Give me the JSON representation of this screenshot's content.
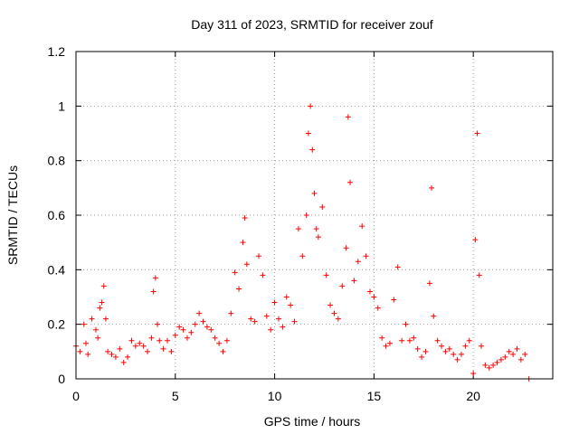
{
  "chart_data": {
    "type": "scatter",
    "title": "Day 311 of 2023, SRMTID for receiver zouf",
    "xlabel": "GPS time / hours",
    "ylabel": "SRMTID / TECUs",
    "xlim": [
      0,
      24
    ],
    "ylim": [
      0,
      1.2
    ],
    "x_ticks": [
      0,
      5,
      10,
      15,
      20
    ],
    "x_tick_labels": [
      "0",
      "5",
      "10",
      "15",
      "20"
    ],
    "y_ticks": [
      0,
      0.2,
      0.4,
      0.6,
      0.8,
      1,
      1.2
    ],
    "y_tick_labels": [
      "0",
      "0.2",
      "0.4",
      "0.6",
      "0.8",
      "1",
      "1.2"
    ],
    "grid": true,
    "marker": "plus",
    "color": "#ff0000",
    "series": [
      {
        "name": "SRMTID",
        "x": [
          0.0,
          0.2,
          0.4,
          0.5,
          0.6,
          0.8,
          1.0,
          1.1,
          1.2,
          1.3,
          1.4,
          1.5,
          1.6,
          1.8,
          2.0,
          2.2,
          2.4,
          2.6,
          2.8,
          3.0,
          3.2,
          3.4,
          3.6,
          3.8,
          3.9,
          4.0,
          4.1,
          4.2,
          4.4,
          4.6,
          4.8,
          5.0,
          5.2,
          5.4,
          5.6,
          5.8,
          6.0,
          6.2,
          6.4,
          6.6,
          6.8,
          7.0,
          7.2,
          7.4,
          7.6,
          7.8,
          8.0,
          8.2,
          8.4,
          8.5,
          8.6,
          8.8,
          9.0,
          9.2,
          9.4,
          9.6,
          9.8,
          10.0,
          10.2,
          10.4,
          10.6,
          10.8,
          11.0,
          11.2,
          11.4,
          11.6,
          11.7,
          11.8,
          11.9,
          12.0,
          12.1,
          12.2,
          12.4,
          12.6,
          12.8,
          13.0,
          13.2,
          13.4,
          13.6,
          13.7,
          13.8,
          14.0,
          14.2,
          14.4,
          14.6,
          14.8,
          15.0,
          15.2,
          15.4,
          15.6,
          15.8,
          16.0,
          16.2,
          16.4,
          16.6,
          16.8,
          17.0,
          17.2,
          17.4,
          17.6,
          17.8,
          17.9,
          18.0,
          18.2,
          18.4,
          18.6,
          18.8,
          19.0,
          19.2,
          19.4,
          19.6,
          19.8,
          20.0,
          20.1,
          20.2,
          20.3,
          20.4,
          20.6,
          20.8,
          21.0,
          21.2,
          21.4,
          21.6,
          21.8,
          22.0,
          22.2,
          22.4,
          22.6,
          22.8
        ],
        "y": [
          0.12,
          0.1,
          0.2,
          0.13,
          0.09,
          0.22,
          0.18,
          0.15,
          0.26,
          0.28,
          0.34,
          0.22,
          0.1,
          0.09,
          0.08,
          0.11,
          0.06,
          0.08,
          0.14,
          0.12,
          0.13,
          0.12,
          0.1,
          0.15,
          0.32,
          0.37,
          0.2,
          0.14,
          0.11,
          0.14,
          0.1,
          0.16,
          0.19,
          0.18,
          0.15,
          0.17,
          0.2,
          0.24,
          0.21,
          0.19,
          0.18,
          0.15,
          0.13,
          0.1,
          0.14,
          0.24,
          0.39,
          0.33,
          0.5,
          0.59,
          0.42,
          0.22,
          0.21,
          0.45,
          0.38,
          0.23,
          0.18,
          0.28,
          0.22,
          0.19,
          0.3,
          0.27,
          0.21,
          0.55,
          0.45,
          0.6,
          0.9,
          1.0,
          0.84,
          0.68,
          0.55,
          0.52,
          0.63,
          0.38,
          0.27,
          0.24,
          0.22,
          0.34,
          0.48,
          0.96,
          0.72,
          0.36,
          0.43,
          0.56,
          0.45,
          0.32,
          0.3,
          0.26,
          0.15,
          0.12,
          0.13,
          0.29,
          0.41,
          0.14,
          0.2,
          0.14,
          0.15,
          0.11,
          0.08,
          0.1,
          0.35,
          0.7,
          0.23,
          0.14,
          0.12,
          0.1,
          0.11,
          0.09,
          0.07,
          0.09,
          0.12,
          0.14,
          0.02,
          0.51,
          0.9,
          0.38,
          0.12,
          0.05,
          0.04,
          0.05,
          0.06,
          0.07,
          0.08,
          0.1,
          0.09,
          0.11,
          0.07,
          0.09,
          0.0
        ]
      }
    ]
  }
}
